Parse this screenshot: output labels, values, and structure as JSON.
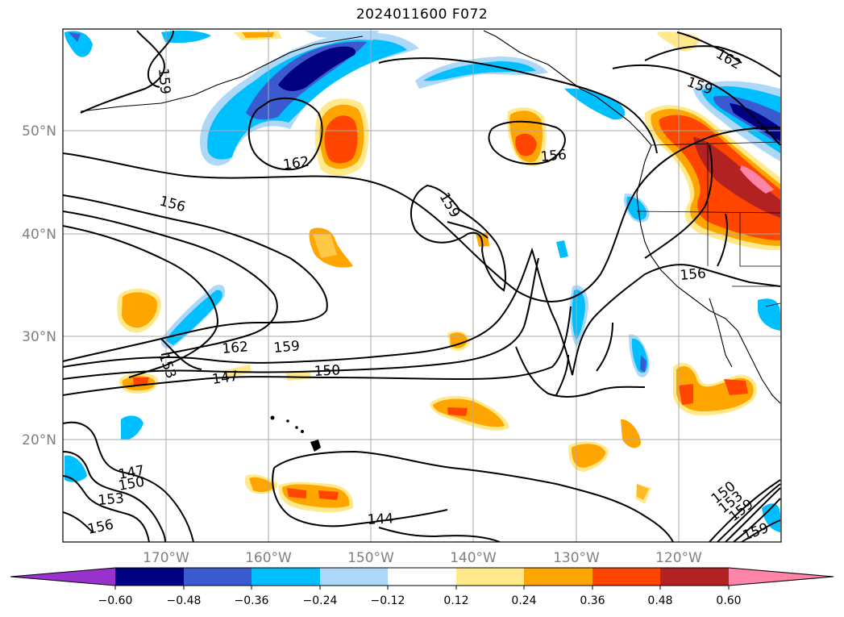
{
  "title": "2024011600 F072",
  "map": {
    "lat_labels": [
      "50°N",
      "40°N",
      "30°N",
      "20°N"
    ],
    "lon_labels": [
      "170°W",
      "160°W",
      "150°W",
      "140°W",
      "130°W",
      "120°W"
    ],
    "contour_labels": [
      "162",
      "159",
      "159",
      "162",
      "156",
      "159",
      "156",
      "162",
      "159",
      "153",
      "147",
      "150",
      "156",
      "147",
      "150",
      "153",
      "156",
      "144",
      "150",
      "153",
      "159",
      "159"
    ]
  },
  "colorbar": {
    "tick_labels": [
      "−0.60",
      "−0.48",
      "−0.36",
      "−0.24",
      "−0.12",
      "0.12",
      "0.24",
      "0.36",
      "0.48",
      "0.60"
    ],
    "colors": [
      "#9932cc",
      "#000080",
      "#3a5bd0",
      "#00bfff",
      "#add8f8",
      "#ffffff",
      "#ffe98a",
      "#ffa500",
      "#ff4500",
      "#b22222",
      "#ff85a8"
    ]
  }
}
